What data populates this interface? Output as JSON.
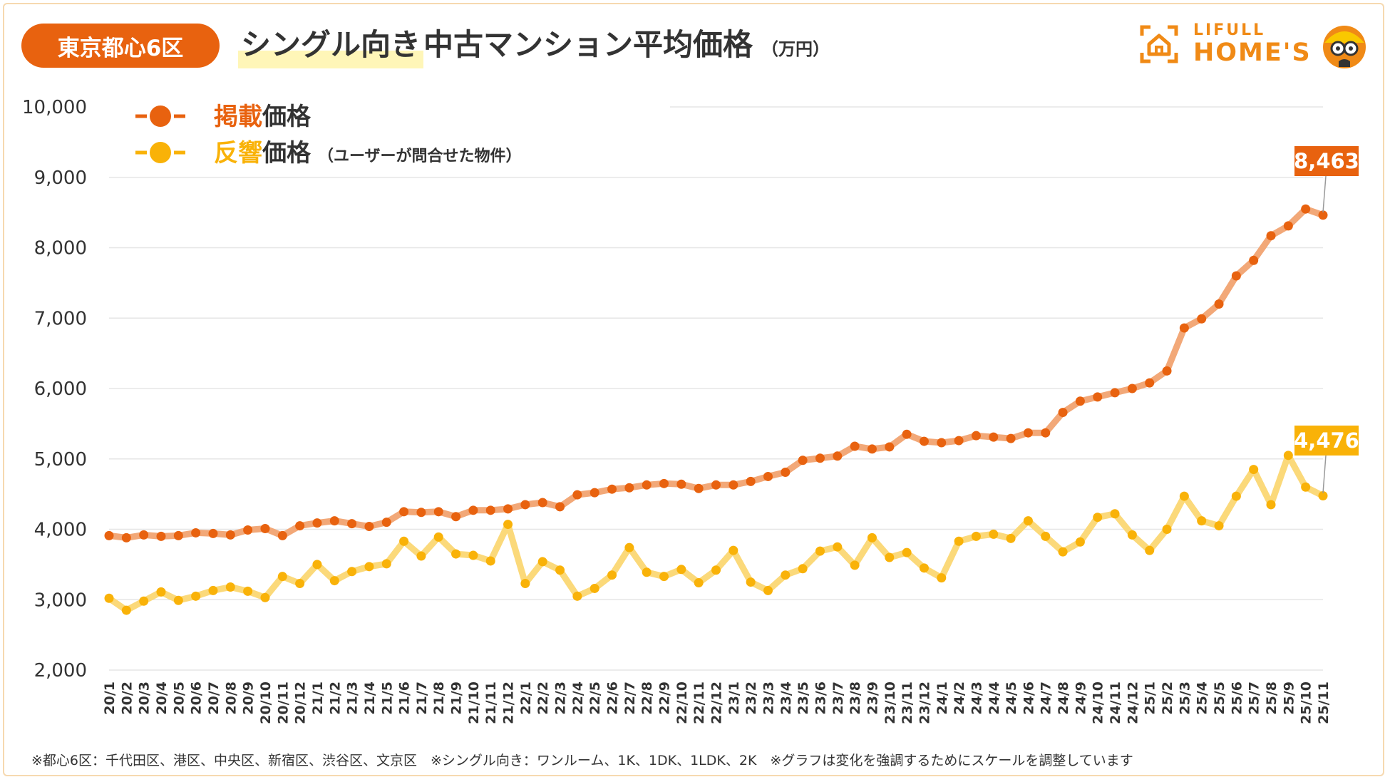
{
  "header": {
    "region_badge": "東京都心6区",
    "title_highlight": "シングル向き",
    "title_rest": "中古マンション平均価格",
    "unit": "（万円）"
  },
  "logo": {
    "top_text": "LIFULL",
    "bottom_text": "HOME'S"
  },
  "footnote": "※都心6区：千代田区、港区、中央区、新宿区、渋谷区、文京区　※シングル向き：ワンルーム、1K、1DK、1LDK、2K　※グラフは変化を強調するためにスケールを調整しています",
  "colors": {
    "listed": "#e8620f",
    "listed_line": "#f2a878",
    "response": "#f9b208",
    "response_line": "#fbd97a",
    "badge": "#e8620f",
    "grid": "#e6e6e6"
  },
  "chart_data": {
    "type": "line",
    "title": "シングル向き中古マンション平均価格",
    "unit": "（万円）",
    "xlabel": "",
    "ylabel": "",
    "ylim": [
      2000,
      10000
    ],
    "yticks": [
      2000,
      3000,
      4000,
      5000,
      6000,
      7000,
      8000,
      9000,
      10000
    ],
    "ytick_labels": [
      "2,000",
      "3,000",
      "4,000",
      "5,000",
      "6,000",
      "7,000",
      "8,000",
      "9,000",
      "10,000"
    ],
    "grid": true,
    "legend_position": "top-left",
    "categories": [
      "20/1",
      "20/2",
      "20/3",
      "20/4",
      "20/5",
      "20/6",
      "20/7",
      "20/8",
      "20/9",
      "20/10",
      "20/11",
      "20/12",
      "21/1",
      "21/2",
      "21/3",
      "21/4",
      "21/5",
      "21/6",
      "21/7",
      "21/8",
      "21/9",
      "21/10",
      "21/11",
      "21/12",
      "22/1",
      "22/2",
      "22/3",
      "22/4",
      "22/5",
      "22/6",
      "22/7",
      "22/8",
      "22/9",
      "22/10",
      "22/11",
      "22/12",
      "23/1",
      "23/2",
      "23/3",
      "23/4",
      "23/5",
      "23/6",
      "23/7",
      "23/8",
      "23/9",
      "23/10",
      "23/11",
      "23/12",
      "24/1",
      "24/2",
      "24/3",
      "24/4",
      "24/5",
      "24/6",
      "24/7",
      "24/8",
      "24/9",
      "24/10",
      "24/11",
      "24/12",
      "25/1",
      "25/2",
      "25/3",
      "25/4",
      "25/5",
      "25/6",
      "25/7",
      "25/8",
      "25/9",
      "25/10",
      "25/11"
    ],
    "series": [
      {
        "name": "掲載価格",
        "name_em": "掲載",
        "name_rest": "価格",
        "note": "",
        "last_label": "8,463",
        "values": [
          3910,
          3880,
          3920,
          3900,
          3910,
          3950,
          3940,
          3920,
          3990,
          4010,
          3910,
          4050,
          4090,
          4120,
          4080,
          4040,
          4100,
          4250,
          4240,
          4250,
          4180,
          4270,
          4270,
          4290,
          4350,
          4380,
          4320,
          4490,
          4520,
          4570,
          4590,
          4630,
          4650,
          4640,
          4580,
          4630,
          4630,
          4680,
          4750,
          4810,
          4980,
          5010,
          5040,
          5180,
          5140,
          5170,
          5350,
          5250,
          5230,
          5260,
          5330,
          5310,
          5290,
          5370,
          5370,
          5660,
          5820,
          5880,
          5940,
          6000,
          6080,
          6250,
          6860,
          6990,
          7200,
          7600,
          7820,
          8170,
          8310,
          8550,
          8463
        ]
      },
      {
        "name": "反響価格",
        "name_em": "反響",
        "name_rest": "価格",
        "note": "（ユーザーが問合せた物件）",
        "last_label": "4,476",
        "values": [
          3020,
          2850,
          2980,
          3110,
          2990,
          3050,
          3130,
          3180,
          3120,
          3030,
          3330,
          3230,
          3500,
          3270,
          3400,
          3470,
          3510,
          3830,
          3620,
          3890,
          3650,
          3630,
          3550,
          4070,
          3230,
          3540,
          3420,
          3050,
          3160,
          3350,
          3740,
          3390,
          3330,
          3430,
          3240,
          3420,
          3700,
          3250,
          3130,
          3350,
          3440,
          3690,
          3750,
          3490,
          3880,
          3600,
          3670,
          3450,
          3310,
          3830,
          3900,
          3930,
          3870,
          4120,
          3900,
          3680,
          3820,
          4170,
          4220,
          3920,
          3700,
          4000,
          4470,
          4120,
          4050,
          4470,
          4850,
          4350,
          5050,
          4600,
          4476
        ]
      }
    ]
  }
}
